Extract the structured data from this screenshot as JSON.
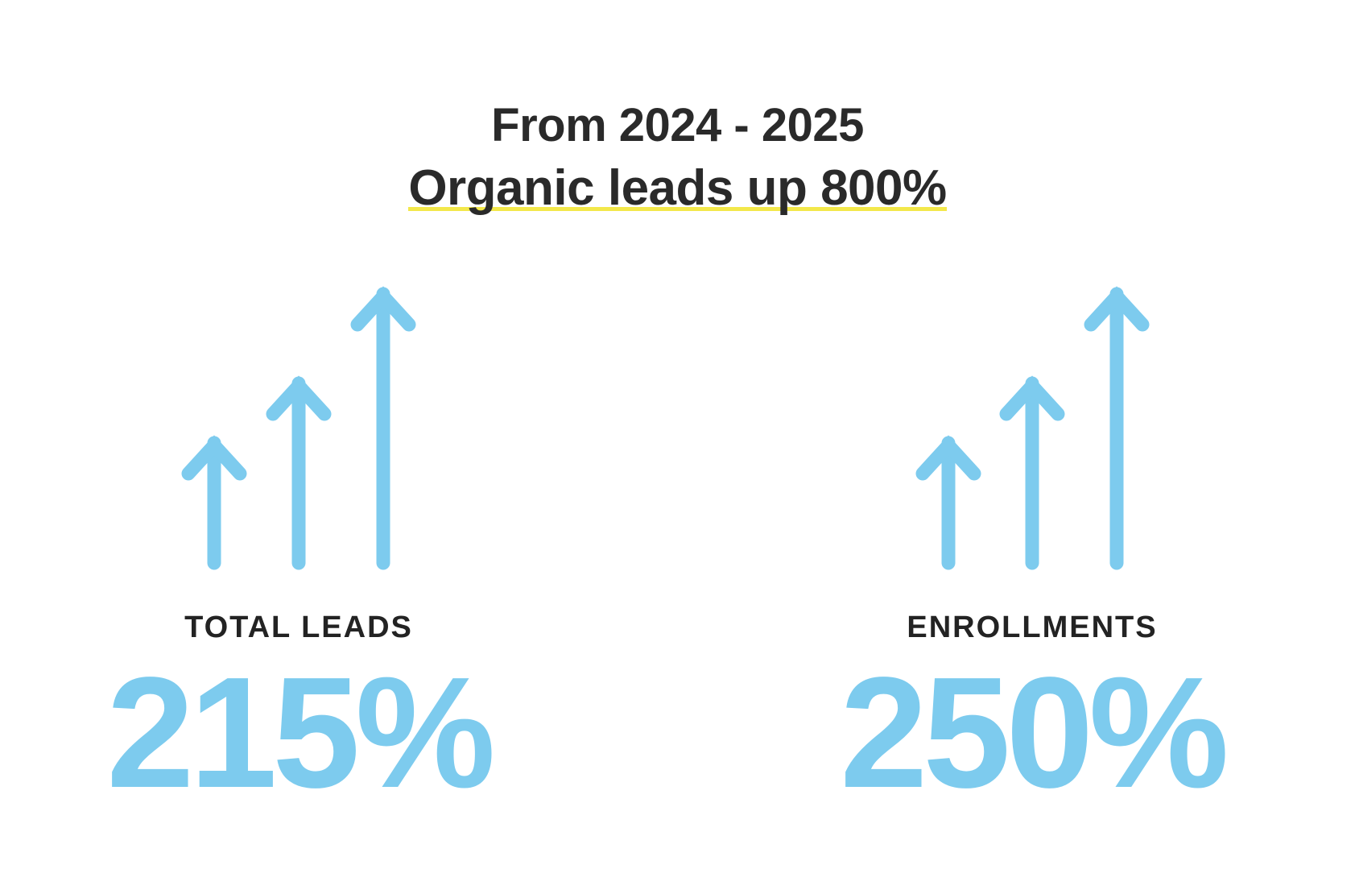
{
  "header": {
    "line1": "From 2024 - 2025",
    "line2": "Organic leads up 800%"
  },
  "stats": [
    {
      "label": "TOTAL LEADS",
      "value": "215%"
    },
    {
      "label": "ENROLLMENTS",
      "value": "250%"
    }
  ],
  "colors": {
    "accent": "#7dcbee",
    "text": "#2a2a2a",
    "underline": "#f3e84a"
  },
  "icons": [
    "arrow-up-icon"
  ]
}
